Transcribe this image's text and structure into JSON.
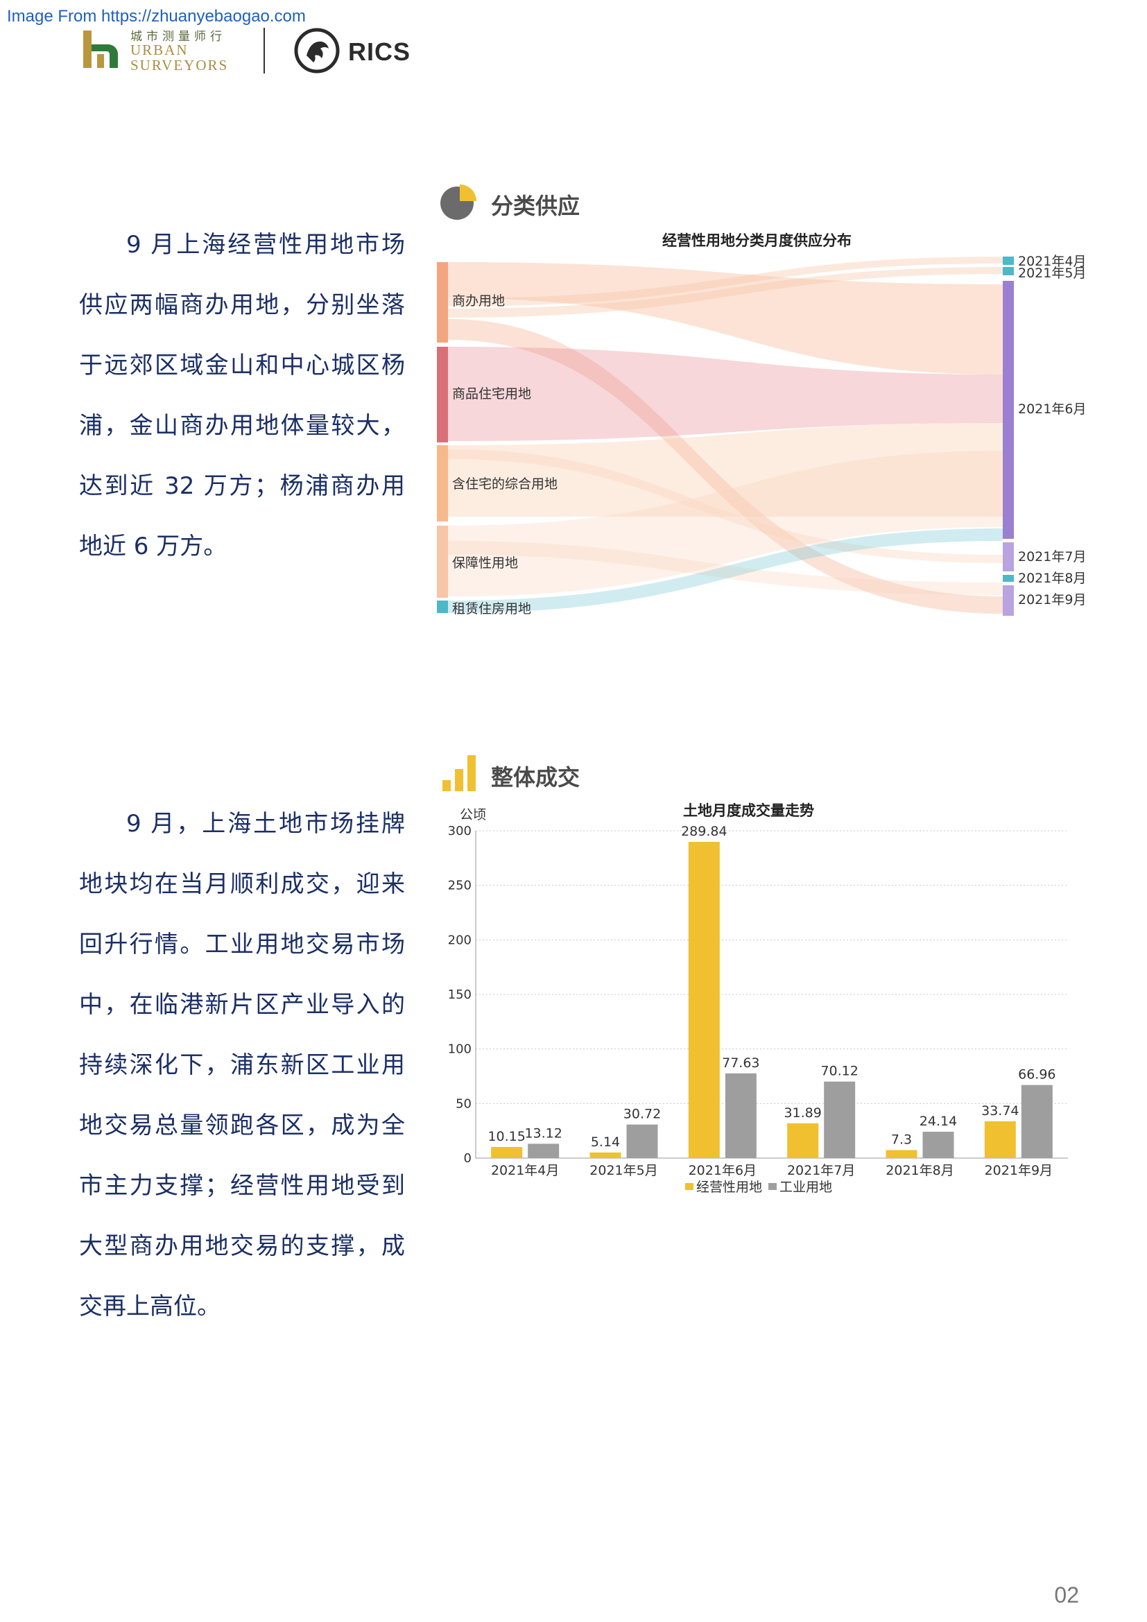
{
  "source_banner": "Image From https://zhuanyebaogao.com",
  "header": {
    "logo_cn": "城市测量师行",
    "logo_en_line1": "URBAN",
    "logo_en_line2": "SURVEYORS",
    "rics": "RICS"
  },
  "section1": {
    "title": "分类供应",
    "text_lead": "9 月上海经营性用地市场供",
    "text_rest": "应两幅商办用地，分别坐落于远郊区域金山和中心城区杨浦，金山商办用地体量较大，达到近 32 万方；杨浦商办用地近 6 万方。",
    "chart_title": "经营性用地分类月度供应分布"
  },
  "section2": {
    "title": "整体成交",
    "text_lead": "9 月，上海土地市场挂牌地",
    "text_rest": "块均在当月顺利成交，迎来回升行情。工业用地交易市场中，在临港新片区产业导入的持续深化下，浦东新区工业用地交易总量领跑各区，成为全市主力支撑；经营性用地受到大型商办用地交易的支撑，成交再上高位。",
    "chart_title": "土地月度成交量走势"
  },
  "chart_data": [
    {
      "type": "sankey",
      "title": "经营性用地分类月度供应分布",
      "sources": [
        "商办用地",
        "商品住宅用地",
        "含住宅的综合用地",
        "保障性用地",
        "租赁住房用地"
      ],
      "targets": [
        "2021年4月",
        "2021年5月",
        "2021年6月",
        "2021年7月",
        "2021年8月",
        "2021年9月"
      ],
      "source_colors": [
        "#f2a57e",
        "#d97078",
        "#f7b98c",
        "#f7c6a6",
        "#4db8c6"
      ],
      "target_colors": [
        "#4db8c6",
        "#4db8c6",
        "#9b7fd1",
        "#b9a3e0",
        "#4db8c6",
        "#b9a3e0"
      ],
      "flows": [
        {
          "from": "商办用地",
          "to": "2021年4月"
        },
        {
          "from": "商办用地",
          "to": "2021年5月"
        },
        {
          "from": "商办用地",
          "to": "2021年6月"
        },
        {
          "from": "商办用地",
          "to": "2021年7月"
        },
        {
          "from": "商办用地",
          "to": "2021年9月"
        },
        {
          "from": "商品住宅用地",
          "to": "2021年6月"
        },
        {
          "from": "含住宅的综合用地",
          "to": "2021年6月"
        },
        {
          "from": "含住宅的综合用地",
          "to": "2021年7月"
        },
        {
          "from": "保障性用地",
          "to": "2021年6月"
        },
        {
          "from": "保障性用地",
          "to": "2021年9月"
        },
        {
          "from": "租赁住房用地",
          "to": "2021年7月"
        }
      ]
    },
    {
      "type": "bar",
      "title": "土地月度成交量走势",
      "ylabel": "公顷",
      "ylim": [
        0,
        300
      ],
      "yticks": [
        0,
        50,
        100,
        150,
        200,
        250,
        300
      ],
      "categories": [
        "2021年4月",
        "2021年5月",
        "2021年6月",
        "2021年7月",
        "2021年8月",
        "2021年9月"
      ],
      "series": [
        {
          "name": "经营性用地",
          "color": "#f0c030",
          "values": [
            10.15,
            5.14,
            289.84,
            31.89,
            7.3,
            33.74
          ]
        },
        {
          "name": "工业用地",
          "color": "#9e9e9e",
          "values": [
            13.12,
            30.72,
            77.63,
            70.12,
            24.14,
            66.96
          ]
        }
      ],
      "grid": true,
      "legend": "bottom"
    }
  ],
  "page_number": "02"
}
